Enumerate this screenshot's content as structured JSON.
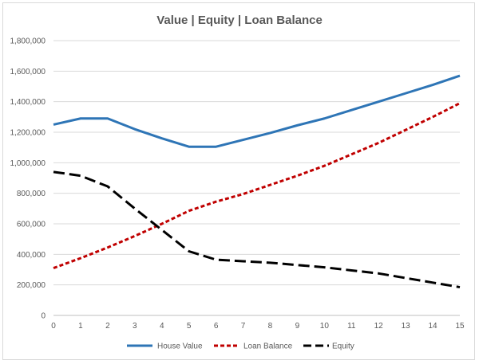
{
  "chart_data": {
    "type": "line",
    "title": "Value | Equity | Loan Balance",
    "xlabel": "",
    "ylabel": "",
    "x": [
      0,
      1,
      2,
      3,
      4,
      5,
      6,
      7,
      8,
      9,
      10,
      11,
      12,
      13,
      14,
      15
    ],
    "xlim": [
      0,
      15
    ],
    "ylim": [
      0,
      1800000
    ],
    "yticks": [
      0,
      200000,
      400000,
      600000,
      800000,
      1000000,
      1200000,
      1400000,
      1600000,
      1800000
    ],
    "ytick_labels": [
      "0",
      "200,000",
      "400,000",
      "600,000",
      "800,000",
      "1,000,000",
      "1,200,000",
      "1,400,000",
      "1,600,000",
      "1,800,000"
    ],
    "xtick_labels": [
      "0",
      "1",
      "2",
      "3",
      "4",
      "5",
      "6",
      "7",
      "8",
      "9",
      "10",
      "11",
      "12",
      "13",
      "14",
      "15"
    ],
    "grid": true,
    "legend_position": "bottom",
    "series": [
      {
        "name": "House Value",
        "color": "#2e75b6",
        "style": "solid",
        "values": [
          1250000,
          1290000,
          1290000,
          1220000,
          1160000,
          1105000,
          1105000,
          1150000,
          1195000,
          1245000,
          1290000,
          1345000,
          1400000,
          1455000,
          1510000,
          1570000
        ]
      },
      {
        "name": "Loan Balance",
        "color": "#c00000",
        "style": "dashed",
        "values": [
          310000,
          375000,
          445000,
          520000,
          600000,
          685000,
          745000,
          795000,
          855000,
          915000,
          980000,
          1055000,
          1130000,
          1215000,
          1300000,
          1390000
        ]
      },
      {
        "name": "Equity",
        "color": "#000000",
        "style": "long-dash",
        "values": [
          940000,
          915000,
          845000,
          700000,
          560000,
          420000,
          365000,
          355000,
          345000,
          330000,
          315000,
          295000,
          275000,
          245000,
          215000,
          185000
        ]
      }
    ]
  }
}
